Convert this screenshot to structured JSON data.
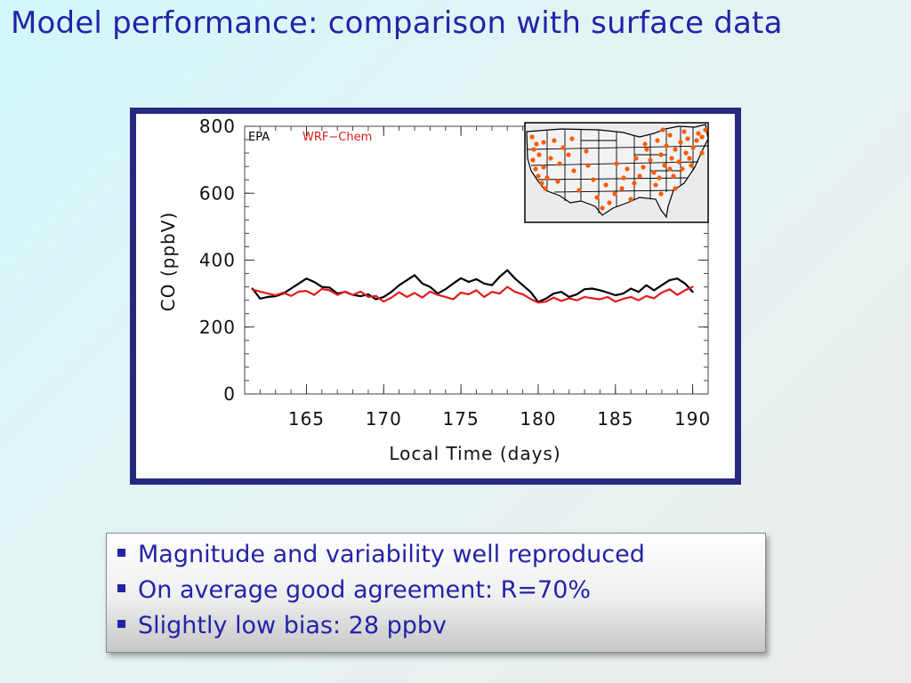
{
  "slide": {
    "title": "Model performance: comparison with surface data",
    "bullets": [
      "Magnitude and variability well reproduced",
      "On average good agreement: R=70%",
      "Slightly low bias: 28 ppbv"
    ]
  },
  "colors": {
    "title": "#2323a8",
    "frame": "#27287f",
    "epa": "#000000",
    "wrf_chem": "#e21a1a",
    "sites": "#ff5a00"
  },
  "chart_data": {
    "type": "line",
    "title": "",
    "xlabel": "Local Time (days)",
    "ylabel": "CO (ppbV)",
    "xlim": [
      161,
      191
    ],
    "ylim": [
      0,
      800
    ],
    "xticks": [
      165,
      170,
      175,
      180,
      185,
      190
    ],
    "yticks": [
      0,
      200,
      400,
      600,
      800
    ],
    "legend_placement": "top-left",
    "series": [
      {
        "name": "EPA",
        "color": "#000000",
        "x": [
          161.5,
          162,
          162.5,
          163,
          163.5,
          164,
          164.5,
          165,
          165.5,
          166,
          166.5,
          167,
          167.5,
          168,
          168.5,
          169,
          169.5,
          170,
          170.5,
          171,
          171.5,
          172,
          172.5,
          173,
          173.5,
          174,
          174.5,
          175,
          175.5,
          176,
          176.5,
          177,
          177.5,
          178,
          178.5,
          179,
          179.5,
          180,
          180.5,
          181,
          181.5,
          182,
          182.5,
          183,
          183.5,
          184,
          184.5,
          185,
          185.5,
          186,
          186.5,
          187,
          187.5,
          188,
          188.5,
          189,
          189.5,
          190
        ],
        "values": [
          315,
          285,
          290,
          292,
          300,
          315,
          330,
          345,
          335,
          320,
          318,
          300,
          305,
          296,
          292,
          298,
          283,
          290,
          305,
          325,
          340,
          355,
          330,
          320,
          300,
          313,
          330,
          346,
          335,
          343,
          330,
          325,
          350,
          370,
          345,
          325,
          305,
          275,
          285,
          300,
          305,
          290,
          298,
          313,
          315,
          310,
          303,
          295,
          300,
          315,
          305,
          325,
          310,
          325,
          340,
          345,
          330,
          305
        ]
      },
      {
        "name": "WRF−Chem",
        "color": "#e21a1a",
        "x": [
          161.5,
          162,
          162.5,
          163,
          163.5,
          164,
          164.5,
          165,
          165.5,
          166,
          166.5,
          167,
          167.5,
          168,
          168.5,
          169,
          169.5,
          170,
          170.5,
          171,
          171.5,
          172,
          172.5,
          173,
          173.5,
          174,
          174.5,
          175,
          175.5,
          176,
          176.5,
          177,
          177.5,
          178,
          178.5,
          179,
          179.5,
          180,
          180.5,
          181,
          181.5,
          182,
          182.5,
          183,
          183.5,
          184,
          184.5,
          185,
          185.5,
          186,
          186.5,
          187,
          187.5,
          188,
          188.5,
          189,
          189.5,
          190
        ],
        "values": [
          312,
          306,
          300,
          295,
          303,
          293,
          306,
          308,
          296,
          314,
          310,
          296,
          306,
          296,
          306,
          290,
          293,
          276,
          288,
          304,
          290,
          302,
          288,
          306,
          296,
          290,
          283,
          303,
          298,
          310,
          290,
          305,
          300,
          320,
          305,
          298,
          284,
          273,
          276,
          288,
          278,
          286,
          280,
          290,
          286,
          283,
          290,
          276,
          284,
          290,
          280,
          293,
          286,
          303,
          313,
          296,
          310,
          320
        ]
      }
    ]
  },
  "inset_map": {
    "region": "Contiguous United States",
    "site_markers": "EPA surface monitoring sites"
  }
}
